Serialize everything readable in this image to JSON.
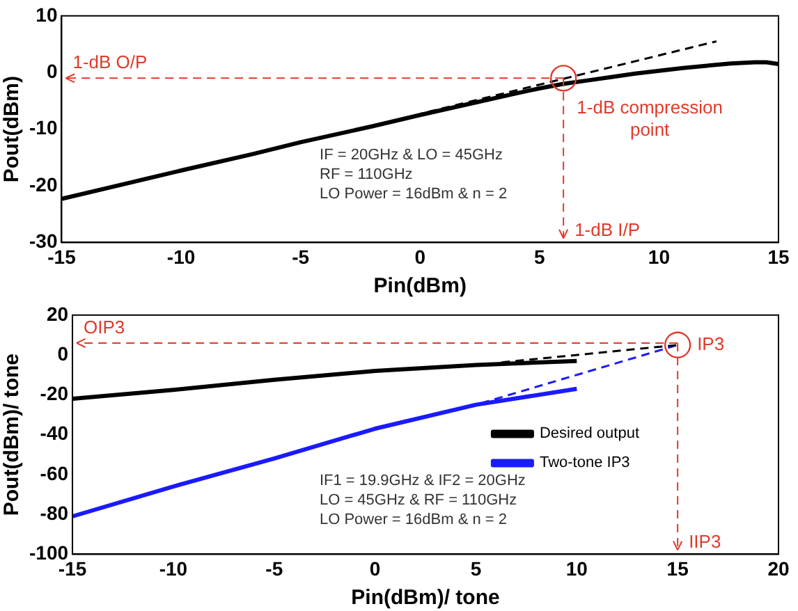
{
  "chart_data": [
    {
      "type": "line",
      "xlabel": "Pin(dBm)",
      "ylabel": "Pout(dBm)",
      "xlim": [
        -15,
        15
      ],
      "ylim": [
        -30,
        10
      ],
      "xticks": [
        -15,
        -10,
        -5,
        0,
        5,
        10,
        15
      ],
      "yticks": [
        -30,
        -20,
        -10,
        0,
        10
      ],
      "grid": false,
      "legend": false,
      "marker": "none",
      "series": [
        {
          "color": "#000000",
          "x": [
            -15,
            -12,
            -10,
            -7,
            -5,
            -2,
            0,
            2,
            4,
            5,
            6,
            7,
            8,
            9,
            10,
            11,
            12,
            13,
            14,
            14.5,
            15
          ],
          "values": [
            -22.3,
            -19.3,
            -17.3,
            -14.4,
            -12.3,
            -9.5,
            -7.5,
            -5.6,
            -3.7,
            -2.8,
            -2.0,
            -1.4,
            -0.8,
            -0.2,
            0.3,
            0.8,
            1.2,
            1.6,
            1.8,
            1.8,
            1.5
          ]
        },
        {
          "color": "#000000",
          "line_style": "dashed",
          "x": [
            0,
            12.4
          ],
          "values": [
            -7.3,
            5.5
          ]
        }
      ],
      "ref_lines": [
        {
          "axis": "y",
          "value": -1,
          "label": "1-dB O/P",
          "color": "#e03a2a",
          "line_style": "dashed"
        },
        {
          "axis": "x",
          "value": 6,
          "label": "1-dB I/P",
          "color": "#e03a2a",
          "line_style": "dashed"
        }
      ],
      "annotations": [
        {
          "text": "1-dB compression point",
          "x": 6,
          "y": -1
        },
        "IF = 20GHz & LO = 45GHz",
        "RF = 110GHz",
        "LO Power = 16dBm & n = 2"
      ]
    },
    {
      "type": "line",
      "xlabel": "Pin(dBm)/ tone",
      "ylabel": "Pout(dBm)/ tone",
      "xlim": [
        -15,
        20
      ],
      "ylim": [
        -100,
        20
      ],
      "xticks": [
        -15,
        -10,
        -5,
        0,
        5,
        10,
        15,
        20
      ],
      "yticks": [
        -100,
        -80,
        -60,
        -40,
        -20,
        0,
        20
      ],
      "grid": false,
      "legend": "bottom right",
      "series": [
        {
          "name": "Desired output",
          "color": "#000000",
          "x": [
            -15,
            -10,
            -5,
            0,
            5,
            10
          ],
          "values": [
            -22,
            -17.5,
            -12.5,
            -8,
            -5,
            -3
          ]
        },
        {
          "name": "Two-tone IP3",
          "color": "#1a1aff",
          "x": [
            -15,
            -10,
            -5,
            0,
            5,
            10
          ],
          "values": [
            -81,
            -66,
            -52,
            -37,
            -25,
            -17
          ]
        },
        {
          "color": "#000000",
          "line_style": "dashed",
          "x": [
            6,
            15
          ],
          "values": [
            -4,
            5
          ]
        },
        {
          "color": "#1a1aff",
          "line_style": "dashed",
          "x": [
            5,
            15
          ],
          "values": [
            -25,
            5
          ]
        }
      ],
      "ref_lines": [
        {
          "axis": "y",
          "value": 6,
          "label": "OIP3",
          "color": "#e03a2a",
          "line_style": "dashed"
        },
        {
          "axis": "x",
          "value": 15,
          "label": "IIP3",
          "color": "#e03a2a",
          "line_style": "dashed"
        }
      ],
      "annotations": [
        {
          "text": "IP3",
          "x": 15,
          "y": 5
        },
        "IF1 = 19.9GHz & IF2 = 20GHz",
        "LO = 45GHz & RF = 110GHz",
        "LO Power = 16dBm & n = 2"
      ]
    }
  ]
}
